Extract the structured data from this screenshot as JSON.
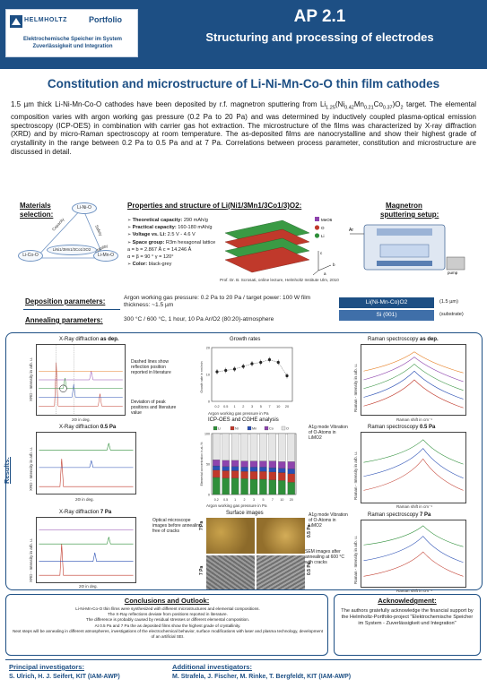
{
  "header": {
    "logo_name": "HELMHOLTZ",
    "logo_portfolio": "Portfolio",
    "logo_line1": "Elektrochemische Speicher im System",
    "logo_line2": "Zuverlässigkeit und Integration",
    "code": "AP 2.1",
    "title": "Structuring and processing of electrodes"
  },
  "main_title": "Constitution and microstructure of Li-Ni-Mn-Co-O thin film cathodes",
  "abstract": "1.5 µm thick Li-Ni-Mn-Co-O cathodes have been deposited by r.f. magnetron sputtering from Li1.25(Ni0.42Mn0.21Co0.37)O2 target. The elemental composition varies with argon working gas pressure (0.2 Pa to 20 Pa) and was determined by inductively coupled plasma-optical emission spectroscopy (ICP-OES) in combination with carrier gas hot extraction. The microstructure of the films was characterized by X-ray diffraction (XRD) and by micro-Raman spectroscopy at room temperature. The as-deposited films are nanocrystalline and show their highest grade of crystallinity in the range between 0.2 Pa to 0.5 Pa and at 7 Pa. Correlations between process parameter, constitution and microstructure are discussed in detail.",
  "materials": {
    "title_line1": "Materials",
    "title_line2": "selection:",
    "nodes": [
      "Li-Ni-O",
      "LiNi1/3Mn1/3Co1/3O2",
      "Li-Co-O",
      "Li-Mn-O"
    ],
    "edge_labels": [
      "Capacity",
      "Safety",
      "Stability"
    ]
  },
  "properties": {
    "title": "Properties and structure of Li(Ni1/3Mn1/3Co1/3)O2:",
    "items": [
      {
        "label": "Theoretical capacity:",
        "value": "290 mAh/g"
      },
      {
        "label": "Practical capacity:",
        "value": "160-180 mAh/g"
      },
      {
        "label": "Voltage vs. Li:",
        "value": "2.5 V - 4.6 V"
      },
      {
        "label": "Space group:",
        "value": "R3m hexagonal lattice"
      }
    ],
    "lattice_1": "a = b = 2.867 Å  c = 14.246 Å",
    "lattice_2": "α = β = 90 °  γ = 120°",
    "color_label": "Color:",
    "color_value": "black-grey",
    "legend": [
      "MeO6",
      "O",
      "Li"
    ],
    "axis_labels": [
      "c",
      "b",
      "a"
    ],
    "credit": "Prof. Dr. B. Scrosati, online lecture, Helmholtz Institute Ulm, 2010"
  },
  "magnetron": {
    "title_line1": "Magnetron",
    "title_line2": "sputtering setup:",
    "labels": [
      "Ar",
      "pump"
    ]
  },
  "deposition": {
    "label": "Deposition parameters:",
    "text": "Argon working gas pressure: 0.2 Pa to 20 Pa / target power: 100 W film thickness: ~1.5 µm",
    "annealing_label": "Annealing parameters:",
    "annealing_text": "300 °C / 600 °C, 1 hour, 10 Pa Ar/O2 (80:20)-atmosphere",
    "layer_top": "Li(Ni-Mn-Co)O2",
    "layer_top_note": "(1.5 µm)",
    "layer_bottom": "Si (001)",
    "layer_bottom_note": "(substrate)"
  },
  "results": {
    "label": "Results:",
    "xrd_asdep_title_1": "X-Ray diffraction",
    "xrd_asdep_title_2": "as dep.",
    "xrd_05_title_1": "X-Ray diffraction",
    "xrd_05_title_2": "0.5 Pa",
    "xrd_7_title_1": "X-Ray diffraction",
    "xrd_7_title_2": "7 Pa",
    "xrd_xlabel": "2Θ in deg.",
    "xrd_ylabel": "XRD - Intensity in arb. u.",
    "note_dashed": "Dashed lines show reflection position reported in literature",
    "note_deviation": "Deviation of peak positions and literature value",
    "growth_title": "Growth rates",
    "growth_xlabel": "Argon working gas pressure in Pa",
    "growth_ylabel": "Growth rate in nm/min",
    "icp_title": "ICP-OES and CGHE analysis",
    "icp_xlabel": "Argon working gas pressure in Pa",
    "icp_ylabel": "Elemental concentration in at.-%",
    "raman_asdep_title_1": "Raman spectroscopy",
    "raman_asdep_title_2": "as dep.",
    "raman_05_title_1": "Raman spectroscopy",
    "raman_05_title_2": "0.5 Pa",
    "raman_7_title_1": "Raman spectroscopy",
    "raman_7_title_2": "7 Pa",
    "raman_xlabel": "Raman shift in cm⁻¹",
    "raman_ylabel": "Raman - Intensity in arb. u.",
    "a1g_note_1": "A1g mode Vibration of O-Atoms in LiMO2",
    "a1g_note_2": "A1g mode Vibration of O-Atoms in LiMO2",
    "surface_title": "Surface images",
    "optical_note": "Optical microscope images before annealing, free of cracks",
    "sem_note": "SEM images after annealing at 600 °C with cracks",
    "sample_labels": [
      "7 Pa",
      "0.5 Pa",
      "7 Pa",
      "0.5 Pa"
    ]
  },
  "chart_data": [
    {
      "type": "scatter",
      "title": "Growth rates",
      "xlabel": "Argon working gas pressure in Pa",
      "ylabel": "Growth rate in nm/min",
      "x": [
        0.2,
        0.5,
        1,
        2,
        3,
        5,
        7,
        10,
        20
      ],
      "y": [
        11,
        11.5,
        12,
        13,
        14,
        14.5,
        15.5,
        14.5,
        9.5
      ],
      "ylim": [
        0,
        20
      ]
    },
    {
      "type": "bar",
      "title": "ICP-OES and CGHE analysis",
      "xlabel": "Argon working gas pressure in Pa",
      "ylabel": "Elemental concentration in at.-%",
      "categories": [
        "0.2",
        "0.5",
        "1",
        "2",
        "3",
        "5",
        "7",
        "10",
        "20"
      ],
      "series": [
        {
          "name": "Li",
          "values": [
            28,
            27,
            27,
            26,
            25,
            25,
            24,
            23,
            20
          ]
        },
        {
          "name": "Ni",
          "values": [
            12,
            12,
            12,
            12,
            13,
            13,
            13,
            13,
            14
          ]
        },
        {
          "name": "Mn",
          "values": [
            7,
            7,
            7,
            7,
            7,
            7,
            7,
            7,
            8
          ]
        },
        {
          "name": "Co",
          "values": [
            10,
            10,
            10,
            10,
            10,
            10,
            11,
            11,
            12
          ]
        },
        {
          "name": "O",
          "values": [
            43,
            44,
            44,
            45,
            45,
            45,
            45,
            46,
            46
          ]
        }
      ],
      "ylim": [
        0,
        100
      ]
    }
  ],
  "colors": {
    "primary": "#1d4f84",
    "secondary": "#3f6fa9",
    "li": "#2f8f3a",
    "ni": "#c0392b",
    "mn": "#2a4fb4",
    "co": "#8e44ad",
    "o": "#e5e5e5"
  },
  "conclusions": {
    "title": "Conclusions and Outlook:",
    "items": [
      "Li-Ni-Mn-Co-O thin films were synthesized with different microstructures and elemental compositions.",
      "The X-Ray reflections deviate from positions reported in literature.",
      "The difference is probably caused by residual stresses or different elemental composition.",
      "At 0.5 Pa and 7 Pa the as deposited films show the highest grade of crystallinity.",
      "Next steps will be annealing in different atmospheres, investigations of the electrochemical behavior, surface modifications with laser and plasma technology, development of an artificial SEI."
    ]
  },
  "acknowledgment": {
    "title": "Acknowledgment:",
    "text": "The authors gratefully acknowledge the financial support by the Helmholtz-Portfolio-project \"Elektrochemische Speicher im System - Zuverlässigkeit und Integration\""
  },
  "footer": {
    "pi_title": "Principal investigators:",
    "pi_names": "S. Ulrich, H. J. Seifert, KIT (IAM-AWP)",
    "ai_title": "Additional investigators:",
    "ai_names": "M. Strafela, J. Fischer, M. Rinke, T. Bergfeldt, KIT (IAM-AWP)"
  }
}
